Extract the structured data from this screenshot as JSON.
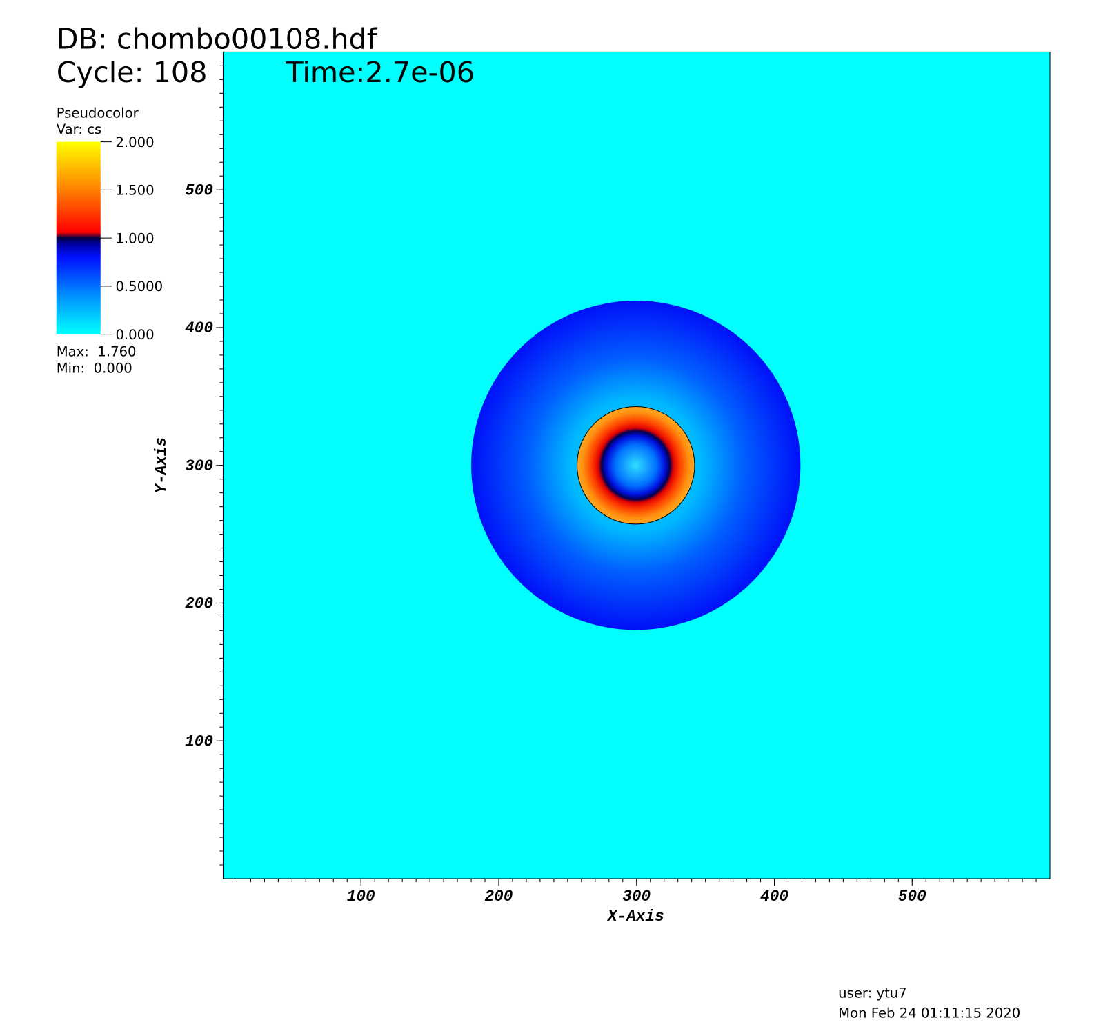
{
  "chart_data": {
    "type": "pseudocolor",
    "title": "DB: chombo00108.hdf",
    "cycle": "Cycle: 108",
    "time": "Time:2.7e-06",
    "xlabel": "X-Axis",
    "ylabel": "Y-Axis",
    "xlim": [
      0,
      600
    ],
    "ylim": [
      0,
      600
    ],
    "xticks": [
      100,
      200,
      300,
      400,
      500
    ],
    "yticks": [
      100,
      200,
      300,
      400,
      500
    ],
    "colorbar": {
      "title": "Pseudocolor",
      "var": "Var: cs",
      "lim": [
        0,
        2
      ],
      "ticks": [
        {
          "value": 2,
          "label": "2.000"
        },
        {
          "value": 1.5,
          "label": "1.500"
        },
        {
          "value": 1,
          "label": "1.000"
        },
        {
          "value": 0.5,
          "label": "0.5000"
        },
        {
          "value": 0,
          "label": "0.000"
        }
      ],
      "max": "Max:  1.760",
      "min": "Min:  0.000"
    },
    "user": "user: ytu7",
    "date": "Mon Feb 24 01:11:15 2020"
  }
}
